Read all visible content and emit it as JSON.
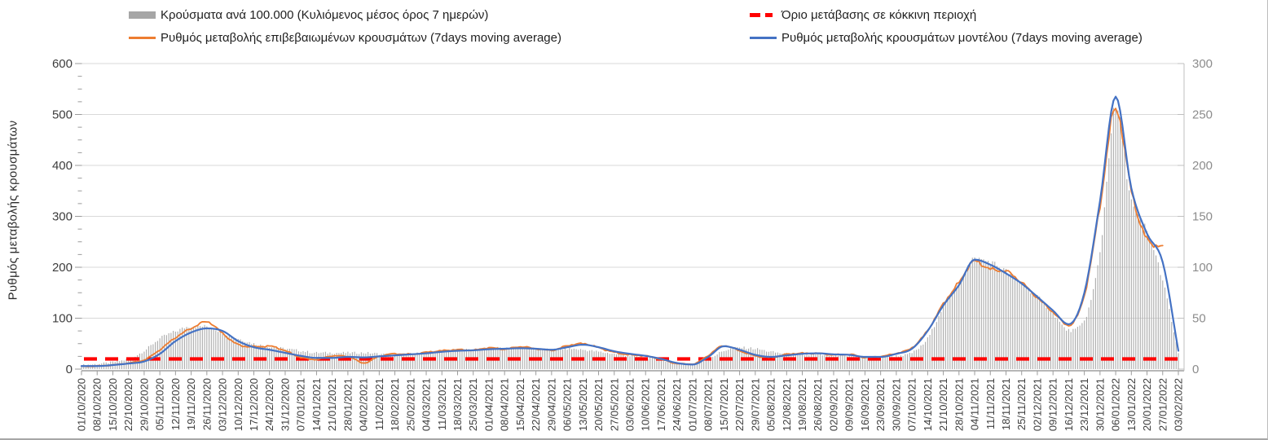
{
  "legend": {
    "items": [
      {
        "label": "Κρούσματα ανά 100.000 (Κυλιόμενος μέσος όρος 7 ημερών)",
        "marker": "bar",
        "color": "#a6a6a6"
      },
      {
        "label": "Όριο μετάβασης σε κόκκινη περιοχή",
        "marker": "dash",
        "color": "#ff0000"
      },
      {
        "label": "Ρυθμός μεταβολής επιβεβαιωμένων κρουσμάτων (7days moving average)",
        "marker": "line",
        "color": "#ed7d31"
      },
      {
        "label": "Ρυθμός μεταβολής κρουσμάτων μοντέλου (7days moving average)",
        "marker": "line",
        "color": "#4472c4"
      }
    ]
  },
  "chart_data": {
    "type": "combo",
    "legend_position": "top",
    "grid": "horizontal",
    "left_axis": {
      "title": "Ρυθμός μεταβολής κρουσμάτων",
      "min": 0,
      "max": 600,
      "major_step": 100,
      "minor_step": 25,
      "ticks": [
        0,
        100,
        200,
        300,
        400,
        500,
        600
      ]
    },
    "right_axis": {
      "min": 0,
      "max": 300,
      "major_step": 50,
      "ticks": [
        0,
        50,
        100,
        150,
        200,
        250,
        300
      ]
    },
    "categories": [
      "01/10/2020",
      "08/10/2020",
      "15/10/2020",
      "22/10/2020",
      "29/10/2020",
      "05/11/2020",
      "12/11/2020",
      "19/11/2020",
      "26/11/2020",
      "03/12/2020",
      "10/12/2020",
      "17/12/2020",
      "24/12/2020",
      "31/12/2020",
      "07/01/2021",
      "14/01/2021",
      "21/01/2021",
      "28/01/2021",
      "04/02/2021",
      "11/02/2021",
      "18/02/2021",
      "25/02/2021",
      "04/03/2021",
      "11/03/2021",
      "18/03/2021",
      "25/03/2021",
      "01/04/2021",
      "08/04/2021",
      "15/04/2021",
      "22/04/2021",
      "29/04/2021",
      "06/05/2021",
      "13/05/2021",
      "20/05/2021",
      "27/05/2021",
      "03/06/2021",
      "10/06/2021",
      "17/06/2021",
      "24/06/2021",
      "01/07/2021",
      "08/07/2021",
      "15/07/2021",
      "22/07/2021",
      "29/07/2021",
      "05/08/2021",
      "12/08/2021",
      "19/08/2021",
      "26/08/2021",
      "02/09/2021",
      "09/09/2021",
      "16/09/2021",
      "23/09/2021",
      "30/09/2021",
      "07/10/2021",
      "14/10/2021",
      "21/10/2021",
      "28/10/2021",
      "04/11/2021",
      "11/11/2021",
      "18/11/2021",
      "25/11/2021",
      "02/12/2021",
      "09/12/2021",
      "16/12/2021",
      "23/12/2021",
      "30/12/2021",
      "06/01/2022",
      "13/01/2022",
      "20/01/2022",
      "27/01/2022",
      "03/02/2022"
    ],
    "series": [
      {
        "name": "Κρούσματα ανά 100.000 (Κυλιόμενος μέσος όρος 7 ημερών)",
        "type": "bar",
        "axis": "right",
        "color": "#ababab",
        "weekly_values": [
          4,
          5,
          7,
          10,
          18,
          30,
          37,
          42,
          42,
          36,
          30,
          25,
          22,
          20,
          18,
          16,
          16,
          16,
          16,
          15,
          14,
          15,
          16,
          18,
          19,
          19,
          20,
          21,
          21,
          20,
          19,
          20,
          19,
          17,
          15,
          13,
          11,
          9,
          6,
          5,
          10,
          18,
          21,
          20,
          17,
          15,
          14,
          14,
          13,
          13,
          12,
          12,
          13,
          16,
          30,
          62,
          84,
          108,
          105,
          96,
          84,
          71,
          55,
          38,
          48,
          115,
          256,
          165,
          135,
          87,
          15
        ]
      },
      {
        "name": "Ρυθμός μεταβολής επιβεβαιωμένων κρουσμάτων (7days moving average)",
        "type": "line",
        "axis": "left",
        "color": "#ed7d31",
        "weekly_values": [
          5,
          6,
          8,
          12,
          18,
          38,
          62,
          80,
          93,
          70,
          48,
          44,
          45,
          36,
          23,
          19,
          26,
          25,
          12,
          25,
          30,
          29,
          33,
          36,
          38,
          37,
          42,
          39,
          44,
          40,
          37,
          46,
          50,
          42,
          33,
          28,
          26,
          19,
          11,
          10,
          27,
          46,
          36,
          26,
          23,
          29,
          31,
          31,
          28,
          29,
          23,
          25,
          31,
          42,
          76,
          128,
          170,
          212,
          196,
          192,
          170,
          140,
          112,
          86,
          145,
          320,
          512,
          350,
          255,
          240,
          null
        ]
      },
      {
        "name": "Ρυθμός μεταβολής κρουσμάτων μοντέλου (7days moving average)",
        "type": "line",
        "axis": "left",
        "color": "#4472c4",
        "weekly_values": [
          6,
          6,
          8,
          11,
          15,
          30,
          55,
          72,
          80,
          75,
          55,
          43,
          38,
          32,
          26,
          22,
          22,
          24,
          23,
          25,
          27,
          29,
          31,
          34,
          36,
          37,
          39,
          40,
          41,
          40,
          38,
          43,
          48,
          43,
          35,
          30,
          26,
          20,
          12,
          9,
          24,
          45,
          38,
          28,
          24,
          27,
          30,
          31,
          29,
          28,
          24,
          24,
          30,
          40,
          75,
          125,
          165,
          215,
          205,
          188,
          168,
          142,
          115,
          88,
          150,
          330,
          535,
          355,
          266,
          210,
          36
        ]
      },
      {
        "name": "Όριο μετάβασης σε κόκκινη περιοχή",
        "type": "threshold",
        "axis": "left",
        "color": "#ff0000",
        "value": 20
      }
    ]
  }
}
